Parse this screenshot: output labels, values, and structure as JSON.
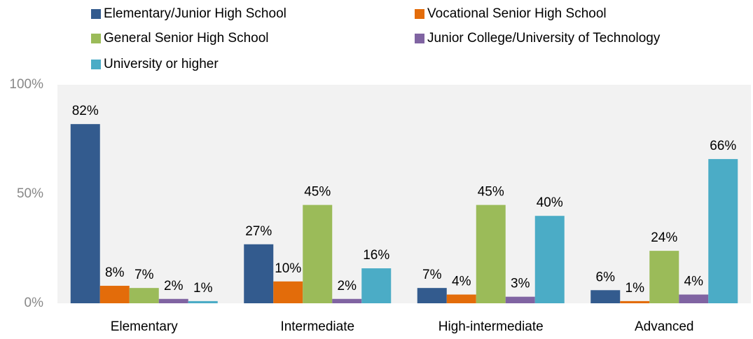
{
  "chart_data": {
    "type": "bar",
    "categories": [
      "Elementary",
      "Intermediate",
      "High-intermediate",
      "Advanced"
    ],
    "series": [
      {
        "name": "Elementary/Junior High School",
        "color": "#335b8e",
        "values": [
          82,
          27,
          7,
          6
        ],
        "value_labels": [
          "82%",
          "27%",
          "7%",
          "6%"
        ]
      },
      {
        "name": "Vocational Senior High School",
        "color": "#e36c0a",
        "values": [
          8,
          10,
          4,
          1
        ],
        "value_labels": [
          "8%",
          "10%",
          "4%",
          "1%"
        ]
      },
      {
        "name": "General Senior High School",
        "color": "#9bbb59",
        "values": [
          7,
          45,
          45,
          24
        ],
        "value_labels": [
          "7%",
          "45%",
          "45%",
          "24%"
        ]
      },
      {
        "name": "Junior College/University of Technology",
        "color": "#8064a2",
        "values": [
          2,
          2,
          3,
          4
        ],
        "value_labels": [
          "2%",
          "2%",
          "3%",
          "4%"
        ]
      },
      {
        "name": "University or higher",
        "color": "#4bacc6",
        "values": [
          1,
          16,
          40,
          66
        ],
        "value_labels": [
          "1%",
          "16%",
          "40%",
          "66%"
        ]
      }
    ],
    "ylim": [
      0,
      100
    ],
    "yticks": [
      {
        "value": 0,
        "label": "0%"
      },
      {
        "value": 50,
        "label": "50%"
      },
      {
        "value": 100,
        "label": "100%"
      }
    ],
    "grid": false,
    "legend": "top"
  }
}
